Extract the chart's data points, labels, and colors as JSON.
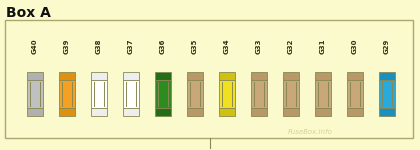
{
  "title": "Box A",
  "bg_color": "#fafacd",
  "border_color": "#aaa870",
  "fuses": [
    {
      "label": "G40",
      "color": "#c0c0c0",
      "cap_color": "#b0b0b0"
    },
    {
      "label": "G39",
      "color": "#f5a020",
      "cap_color": "#e09010"
    },
    {
      "label": "G38",
      "color": "#ffffff",
      "cap_color": "#eeeeee"
    },
    {
      "label": "G37",
      "color": "#ffffff",
      "cap_color": "#eeeeee"
    },
    {
      "label": "G36",
      "color": "#2e8b20",
      "cap_color": "#256e18"
    },
    {
      "label": "G35",
      "color": "#c8a878",
      "cap_color": "#b89868"
    },
    {
      "label": "G34",
      "color": "#f0e020",
      "cap_color": "#d0c010"
    },
    {
      "label": "G33",
      "color": "#c8a878",
      "cap_color": "#b89868"
    },
    {
      "label": "G32",
      "color": "#c8a878",
      "cap_color": "#b89868"
    },
    {
      "label": "G31",
      "color": "#c8a878",
      "cap_color": "#b89868"
    },
    {
      "label": "G30",
      "color": "#c8a878",
      "cap_color": "#b89868"
    },
    {
      "label": "G29",
      "color": "#28aadc",
      "cap_color": "#1890c0"
    }
  ],
  "watermark": "FuseBox.Info",
  "watermark_color": "#c0aa70",
  "watermark_alpha": 0.55,
  "title_fontsize": 10,
  "label_fontsize": 5.0
}
